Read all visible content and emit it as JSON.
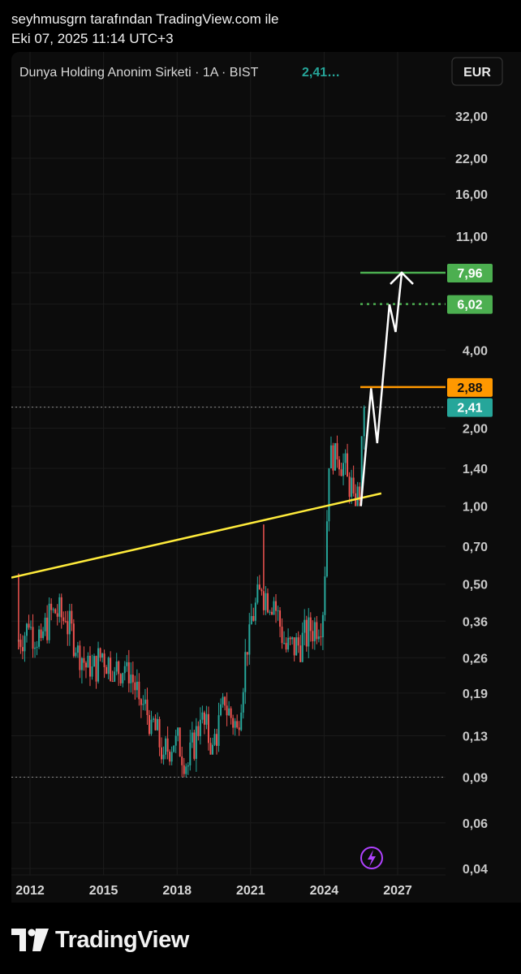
{
  "attribution": {
    "line1": "seyhmusgrn tarafından TradingView.com ile",
    "line2": "Eki 07, 2025 11:14 UTC+3"
  },
  "header": {
    "symbol_info": "Dunya Holding Anonim Sirketi · 1A · BIST",
    "last_price": "2,41…",
    "currency": "EUR"
  },
  "brand": {
    "name": "TradingView",
    "logo_icon": "tradingview-logo-icon"
  },
  "colors": {
    "up": "#26a69a",
    "down": "#ef5350",
    "trendline": "#ffeb3b",
    "resistance": "#ff9800",
    "target": "#4caf50",
    "current": "#26a69a",
    "projection": "#ffffff",
    "lightning": "#b042ff"
  },
  "chart_data": {
    "type": "candlestick",
    "y_scale": "log",
    "y_ticks": [
      "32,00",
      "22,00",
      "16,00",
      "11,00",
      "7,96",
      "6,02",
      "4,00",
      "2,88",
      "2,41",
      "2,00",
      "1,40",
      "1,00",
      "0,70",
      "0,50",
      "0,36",
      "0,26",
      "0,19",
      "0,13",
      "0,09",
      "0,06",
      "0,04"
    ],
    "x_ticks": [
      "2012",
      "2015",
      "2018",
      "2021",
      "2024",
      "2027"
    ],
    "price_labels": [
      {
        "value": "7,96",
        "role": "target"
      },
      {
        "value": "6,02",
        "role": "target-dotted"
      },
      {
        "value": "2,88",
        "role": "resistance"
      },
      {
        "value": "2,41",
        "role": "current"
      }
    ],
    "lows_marker": "0,09",
    "trendline": {
      "from": [
        "2011-06",
        0.53
      ],
      "to": [
        "2026-05",
        1.12
      ]
    },
    "projection_path": [
      [
        "2025-07",
        1.0
      ],
      [
        "2025-12",
        2.85
      ],
      [
        "2026-03",
        1.75
      ],
      [
        "2026-09",
        6.0
      ],
      [
        "2026-12",
        4.7
      ],
      [
        "2027-03",
        7.96
      ]
    ],
    "series": [
      {
        "t": "2011-07",
        "o": 0.3,
        "h": 0.55,
        "l": 0.24,
        "c": 0.34
      },
      {
        "t": "2012-01",
        "o": 0.34,
        "h": 0.44,
        "l": 0.26,
        "c": 0.31
      },
      {
        "t": "2012-07",
        "o": 0.31,
        "h": 0.45,
        "l": 0.28,
        "c": 0.4
      },
      {
        "t": "2013-01",
        "o": 0.4,
        "h": 0.46,
        "l": 0.32,
        "c": 0.36
      },
      {
        "t": "2013-07",
        "o": 0.36,
        "h": 0.42,
        "l": 0.26,
        "c": 0.29
      },
      {
        "t": "2014-01",
        "o": 0.29,
        "h": 0.33,
        "l": 0.2,
        "c": 0.22
      },
      {
        "t": "2014-07",
        "o": 0.22,
        "h": 0.3,
        "l": 0.19,
        "c": 0.27
      },
      {
        "t": "2015-01",
        "o": 0.27,
        "h": 0.3,
        "l": 0.21,
        "c": 0.23
      },
      {
        "t": "2015-07",
        "o": 0.23,
        "h": 0.29,
        "l": 0.2,
        "c": 0.25
      },
      {
        "t": "2016-01",
        "o": 0.25,
        "h": 0.28,
        "l": 0.17,
        "c": 0.18
      },
      {
        "t": "2016-07",
        "o": 0.18,
        "h": 0.22,
        "l": 0.13,
        "c": 0.15
      },
      {
        "t": "2017-01",
        "o": 0.15,
        "h": 0.16,
        "l": 0.1,
        "c": 0.11
      },
      {
        "t": "2017-07",
        "o": 0.11,
        "h": 0.15,
        "l": 0.1,
        "c": 0.13
      },
      {
        "t": "2018-01",
        "o": 0.13,
        "h": 0.14,
        "l": 0.09,
        "c": 0.1
      },
      {
        "t": "2018-07",
        "o": 0.1,
        "h": 0.18,
        "l": 0.09,
        "c": 0.15
      },
      {
        "t": "2019-01",
        "o": 0.15,
        "h": 0.17,
        "l": 0.11,
        "c": 0.12
      },
      {
        "t": "2019-07",
        "o": 0.12,
        "h": 0.19,
        "l": 0.11,
        "c": 0.17
      },
      {
        "t": "2020-01",
        "o": 0.17,
        "h": 0.22,
        "l": 0.1,
        "c": 0.14
      },
      {
        "t": "2020-07",
        "o": 0.14,
        "h": 0.4,
        "l": 0.13,
        "c": 0.35
      },
      {
        "t": "2021-01",
        "o": 0.35,
        "h": 0.57,
        "l": 0.33,
        "c": 0.47
      },
      {
        "t": "2021-07",
        "o": 0.47,
        "h": 0.85,
        "l": 0.38,
        "c": 0.43
      },
      {
        "t": "2022-01",
        "o": 0.43,
        "h": 0.5,
        "l": 0.24,
        "c": 0.28
      },
      {
        "t": "2022-07",
        "o": 0.28,
        "h": 0.36,
        "l": 0.23,
        "c": 0.29
      },
      {
        "t": "2023-01",
        "o": 0.29,
        "h": 0.42,
        "l": 0.25,
        "c": 0.33
      },
      {
        "t": "2023-07",
        "o": 0.33,
        "h": 0.44,
        "l": 0.23,
        "c": 0.38
      },
      {
        "t": "2024-01",
        "o": 0.38,
        "h": 1.6,
        "l": 0.36,
        "c": 1.4
      },
      {
        "t": "2024-04",
        "o": 1.4,
        "h": 2.1,
        "l": 1.2,
        "c": 1.75
      },
      {
        "t": "2024-07",
        "o": 1.75,
        "h": 1.95,
        "l": 1.2,
        "c": 1.3
      },
      {
        "t": "2025-01",
        "o": 1.3,
        "h": 1.6,
        "l": 1.02,
        "c": 1.12
      },
      {
        "t": "2025-04",
        "o": 1.12,
        "h": 1.25,
        "l": 1.0,
        "c": 1.05
      },
      {
        "t": "2025-07",
        "o": 1.05,
        "h": 2.45,
        "l": 1.0,
        "c": 2.41
      }
    ]
  }
}
